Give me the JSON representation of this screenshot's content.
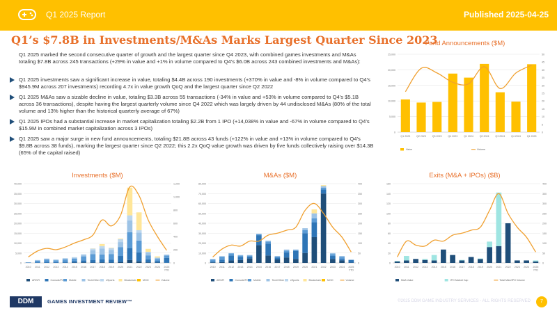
{
  "header": {
    "report_label": "Q1 2025 Report",
    "published": "Published 2025-04-25",
    "bar_color": "#ffc000",
    "logo_icon": "gamepad-icon"
  },
  "title": "Q1’s $7.8B in Investments/M&As Marks Largest Quarter Since 2023",
  "intro": "Q1 2025 marked the second consecutive quarter of growth and the largest quarter since Q4 2023, with combined games investments and M&As totaling $7.8B across 245 transactions (+29% in value and +1% in volume compared to Q4’s $6.0B across 243 combined investments and M&As):",
  "bullets": [
    "Q1 2025 investments saw a significant increase in value, totaling $4.4B across 190 investments (+370% in value and -8% in volume compared to Q4’s $945.9M across 207 investments) recording 4.7x in value growth QoQ and the largest quarter since Q2 2022",
    "Q1 2025 M&As saw a sizable decline in value, totaling $3.3B across 55 transactions (-34% in value and +53% in volume compared to Q4’s $5.1B across 36 transactions), despite having the largest quarterly volume since Q4 2022 which was largely driven by 44 undisclosed M&As (80% of the total volume and 13% higher than the historical quarterly average of 67%)",
    "Q1 2025 IPOs had a substantial increase in market capitalization totaling $2.2B from 1 IPO (+14,038% in value and -67% in volume compared to Q4’s $15.9M in combined market capitalization across 3 IPOs)",
    "Q1 2025 saw a major surge in new fund announcements, totaling $21.8B across 43 funds (+122% in value and +13% in volume compared to Q4’s $9.8B across 38 funds), marking the largest quarter since Q2 2022; this 2.2x QoQ value growth was driven by five funds collectively raising over $14.3B (65% of the capital raised)"
  ],
  "chart_data": [
    {
      "type": "bar",
      "title": "Fund Announcements ($M)",
      "categories": [
        "Q1 2023",
        "Q2 2023",
        "Q3 2023",
        "Q4 2023",
        "Q1 2024",
        "Q2 2024",
        "Q3 2024",
        "Q4 2024",
        "Q1 2025"
      ],
      "series": [
        {
          "name": "Value",
          "kind": "bar",
          "axis": "left",
          "color": "#ffc000",
          "values": [
            10500,
            9500,
            9700,
            18800,
            17500,
            21900,
            12800,
            9800,
            21800
          ]
        },
        {
          "name": "Volume",
          "kind": "line",
          "axis": "right",
          "color": "#f0a030",
          "values": [
            26,
            41,
            38,
            32,
            31,
            42,
            28,
            38,
            43
          ]
        }
      ],
      "y_ticks": [
        0,
        5000,
        10000,
        15000,
        20000,
        25000
      ],
      "y_tick_labels": [
        "0",
        "5,000",
        "10,000",
        "15,000",
        "20,000",
        "25,000"
      ],
      "ylim": [
        0,
        25000
      ],
      "y2_ticks": [
        0,
        5,
        10,
        15,
        20,
        25,
        30,
        35,
        40,
        45,
        50
      ],
      "y2_tick_labels": [
        "0",
        "5",
        "10",
        "15",
        "20",
        "25",
        "30",
        "35",
        "40",
        "45",
        "50"
      ],
      "y2lim": [
        0,
        50
      ],
      "legend": "bottom"
    },
    {
      "type": "bar",
      "stacked": true,
      "title": "Investments ($M)",
      "categories": [
        "2010",
        "2011",
        "2012",
        "2013",
        "2014",
        "2015",
        "2016",
        "2017",
        "2018",
        "2019",
        "2020",
        "2021",
        "2022",
        "2023",
        "2024",
        "2025 YTD"
      ],
      "series": [
        {
          "name": "AR/VR",
          "kind": "bar",
          "axis": "left",
          "color": "#1f4e79",
          "values": [
            10,
            15,
            20,
            30,
            40,
            200,
            300,
            200,
            300,
            200,
            500,
            1500,
            800,
            300,
            200,
            50
          ]
        },
        {
          "name": "Console/PC",
          "kind": "bar",
          "axis": "left",
          "color": "#2e75b6",
          "values": [
            100,
            300,
            500,
            400,
            600,
            800,
            1000,
            1200,
            1500,
            1500,
            3000,
            6000,
            4500,
            1500,
            800,
            2500
          ]
        },
        {
          "name": "Mobile",
          "kind": "bar",
          "axis": "left",
          "color": "#5b9bd5",
          "values": [
            200,
            800,
            1200,
            900,
            1200,
            1200,
            2000,
            3000,
            2500,
            2800,
            4500,
            8000,
            6000,
            2000,
            1000,
            1200
          ]
        },
        {
          "name": "Tech/Other",
          "kind": "bar",
          "axis": "left",
          "color": "#9dc3e6",
          "values": [
            50,
            300,
            400,
            300,
            400,
            400,
            700,
            2000,
            3000,
            2000,
            2500,
            6000,
            4000,
            1500,
            600,
            400
          ]
        },
        {
          "name": "eSports",
          "kind": "bar",
          "axis": "left",
          "color": "#bdd7ee",
          "values": [
            0,
            50,
            100,
            100,
            200,
            300,
            400,
            800,
            1200,
            1000,
            1500,
            2500,
            1200,
            300,
            100,
            100
          ]
        },
        {
          "name": "Blockchain",
          "kind": "bar",
          "axis": "left",
          "color": "#ffe699",
          "values": [
            0,
            0,
            0,
            0,
            0,
            0,
            0,
            100,
            1000,
            200,
            300,
            14000,
            9000,
            1500,
            600,
            0
          ]
        },
        {
          "name": "MOO",
          "kind": "bar",
          "axis": "left",
          "color": "#ffc000",
          "values": [
            0,
            0,
            0,
            0,
            0,
            0,
            0,
            0,
            0,
            0,
            0,
            0,
            0,
            0,
            0,
            0
          ]
        },
        {
          "name": "Volume",
          "kind": "line",
          "axis": "right",
          "color": "#f0a030",
          "values": [
            90,
            180,
            220,
            200,
            240,
            300,
            350,
            420,
            650,
            560,
            720,
            1150,
            1020,
            650,
            400,
            190
          ]
        }
      ],
      "y_ticks": [
        0,
        5000,
        10000,
        15000,
        20000,
        25000,
        30000,
        35000,
        40000
      ],
      "y_tick_labels": [
        "0",
        "5,000",
        "10,000",
        "15,000",
        "20,000",
        "25,000",
        "30,000",
        "35,000",
        "40,000"
      ],
      "ylim": [
        0,
        40000
      ],
      "y2_ticks": [
        0,
        200,
        400,
        600,
        800,
        1000,
        1200
      ],
      "y2_tick_labels": [
        "0",
        "200",
        "400",
        "600",
        "800",
        "1,000",
        "1,200"
      ],
      "y2lim": [
        0,
        1200
      ],
      "legend": "bottom"
    },
    {
      "type": "bar",
      "stacked": true,
      "title": "M&As ($M)",
      "categories": [
        "2010",
        "2011",
        "2012",
        "2013",
        "2014",
        "2015",
        "2016",
        "2017",
        "2018",
        "2019",
        "2020",
        "2021",
        "2022",
        "2023",
        "2024",
        "2025 YTD"
      ],
      "series": [
        {
          "name": "AR/VR",
          "kind": "bar",
          "axis": "left",
          "color": "#1f4e79",
          "values": [
            500,
            800,
            2500,
            3000,
            4500,
            18000,
            7500,
            3500,
            5500,
            4000,
            10000,
            26000,
            70000,
            4000,
            2500,
            300
          ]
        },
        {
          "name": "Console/PC",
          "kind": "bar",
          "axis": "left",
          "color": "#2e75b6",
          "values": [
            1000,
            2500,
            5000,
            3000,
            2000,
            10000,
            12000,
            2000,
            5000,
            8000,
            20000,
            15000,
            4000,
            3000,
            1500,
            2500
          ]
        },
        {
          "name": "Mobile",
          "kind": "bar",
          "axis": "left",
          "color": "#5b9bd5",
          "values": [
            2000,
            3000,
            2000,
            1500,
            1000,
            1000,
            2000,
            1000,
            2000,
            1000,
            3000,
            4000,
            2000,
            2000,
            2000,
            300
          ]
        },
        {
          "name": "Tech/Other",
          "kind": "bar",
          "axis": "left",
          "color": "#9dc3e6",
          "values": [
            300,
            500,
            500,
            500,
            500,
            500,
            1000,
            500,
            1000,
            500,
            2000,
            5000,
            1500,
            1000,
            1000,
            200
          ]
        },
        {
          "name": "eSports",
          "kind": "bar",
          "axis": "left",
          "color": "#bdd7ee",
          "values": [
            0,
            0,
            0,
            0,
            0,
            0,
            0,
            0,
            0,
            0,
            0,
            0,
            0,
            0,
            0,
            0
          ]
        },
        {
          "name": "Blockchain",
          "kind": "bar",
          "axis": "left",
          "color": "#ffe699",
          "values": [
            0,
            0,
            0,
            0,
            0,
            0,
            0,
            0,
            0,
            0,
            0,
            4000,
            1000,
            0,
            0,
            0
          ]
        },
        {
          "name": "MOO",
          "kind": "bar",
          "axis": "left",
          "color": "#ffc000",
          "values": [
            0,
            0,
            0,
            0,
            0,
            0,
            0,
            0,
            0,
            0,
            0,
            0,
            0,
            0,
            0,
            0
          ]
        },
        {
          "name": "Volume",
          "kind": "line",
          "axis": "right",
          "color": "#f0a030",
          "values": [
            30,
            70,
            90,
            85,
            110,
            110,
            140,
            150,
            165,
            180,
            265,
            300,
            250,
            180,
            130,
            55
          ]
        }
      ],
      "y_ticks": [
        0,
        10000,
        20000,
        30000,
        40000,
        50000,
        60000,
        70000,
        80000
      ],
      "y_tick_labels": [
        "0",
        "10,000",
        "20,000",
        "30,000",
        "40,000",
        "50,000",
        "60,000",
        "70,000",
        "80,000"
      ],
      "ylim": [
        0,
        80000
      ],
      "y2_ticks": [
        0,
        50,
        100,
        150,
        200,
        250,
        300,
        350,
        400
      ],
      "y2_tick_labels": [
        "0",
        "50",
        "100",
        "150",
        "200",
        "250",
        "300",
        "350",
        "400"
      ],
      "y2lim": [
        0,
        400
      ],
      "legend": "bottom"
    },
    {
      "type": "bar",
      "stacked": true,
      "title": "Exits (M&A + IPOs) ($B)",
      "categories": [
        "2010",
        "2011",
        "2012",
        "2013",
        "2014",
        "2015",
        "2016",
        "2017",
        "2018",
        "2019",
        "2020",
        "2021",
        "2022",
        "2023",
        "2024",
        "2025 YTD"
      ],
      "series": [
        {
          "name": "M&A Value",
          "kind": "bar",
          "axis": "left",
          "color": "#1f4e79",
          "values": [
            3,
            5,
            8,
            6,
            5,
            27,
            16,
            5,
            12,
            8,
            32,
            34,
            80,
            5,
            5,
            3
          ]
        },
        {
          "name": "IPO Market Cap",
          "kind": "bar",
          "axis": "left",
          "color": "#9fe5e2",
          "values": [
            1,
            9,
            0,
            2,
            11,
            0,
            0,
            1,
            0,
            1,
            11,
            108,
            0,
            0,
            0,
            2
          ]
        },
        {
          "name": "Total M&A/IPO Volume",
          "kind": "line",
          "axis": "right",
          "color": "#f0a030",
          "values": [
            30,
            110,
            90,
            85,
            115,
            110,
            140,
            150,
            165,
            180,
            265,
            350,
            250,
            180,
            130,
            55
          ]
        }
      ],
      "y_ticks": [
        0,
        20,
        40,
        60,
        80,
        100,
        120,
        140,
        160
      ],
      "y_tick_labels": [
        "0",
        "20",
        "40",
        "60",
        "80",
        "100",
        "120",
        "140",
        "160"
      ],
      "ylim": [
        0,
        160
      ],
      "y2_ticks": [
        0,
        50,
        100,
        150,
        200,
        250,
        300,
        350,
        400
      ],
      "y2_tick_labels": [
        "0",
        "50",
        "100",
        "150",
        "200",
        "250",
        "300",
        "350",
        "400"
      ],
      "y2lim": [
        0,
        400
      ],
      "legend": "bottom"
    }
  ],
  "footer": {
    "logo_text": "DDM",
    "brand": "GAMES INVESTMENT REVIEW™",
    "copyright": "©2025 DDM GAME INDUSTRY SERVICES - ALL RIGHTS RESERVED",
    "page": "7"
  }
}
